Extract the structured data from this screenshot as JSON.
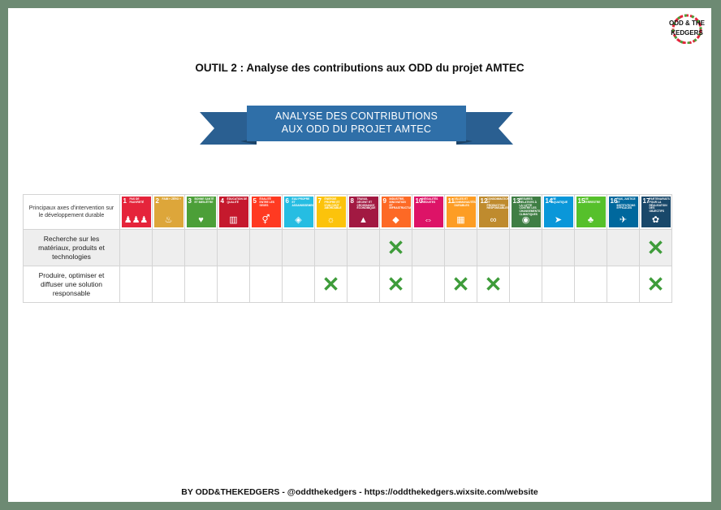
{
  "title": "OUTIL 2 : Analyse des contributions aux ODD du projet AMTEC",
  "banner": {
    "line1": "ANALYSE DES CONTRIBUTIONS",
    "line2": "AUX ODD DU PROJET AMTEC",
    "color": "#2f6fa8"
  },
  "logo": {
    "line1": "ODD & THE",
    "line2": "KEDGERS"
  },
  "table": {
    "header_label": "Principaux axes d'intervention sur le développement durable",
    "sdgs": [
      {
        "n": "1",
        "label": "PAS DE PAUVRETÉ",
        "color": "#e5243b",
        "icon": "people-icon"
      },
      {
        "n": "2",
        "label": "FAIM « ZÉRO »",
        "color": "#dda63a",
        "icon": "bowl-icon"
      },
      {
        "n": "3",
        "label": "BONNE SANTÉ ET BIEN-ÊTRE",
        "color": "#4c9f38",
        "icon": "heartbeat-icon"
      },
      {
        "n": "4",
        "label": "ÉDUCATION DE QUALITÉ",
        "color": "#c5192d",
        "icon": "book-icon"
      },
      {
        "n": "5",
        "label": "ÉGALITÉ ENTRE LES SEXES",
        "color": "#ff3a21",
        "icon": "gender-icon"
      },
      {
        "n": "6",
        "label": "EAU PROPRE ET ASSAINISSEMENT",
        "color": "#26bde2",
        "icon": "water-icon"
      },
      {
        "n": "7",
        "label": "ÉNERGIE PROPRE ET D'UN COÛT ABORDABLE",
        "color": "#fcc30b",
        "icon": "sun-icon"
      },
      {
        "n": "8",
        "label": "TRAVAIL DÉCENT ET CROISSANCE ÉCONOMIQUE",
        "color": "#a21942",
        "icon": "growth-icon"
      },
      {
        "n": "9",
        "label": "INDUSTRIE, INNOVATION ET INFRASTRUCTURE",
        "color": "#fd6925",
        "icon": "cubes-icon"
      },
      {
        "n": "10",
        "label": "INÉGALITÉS RÉDUITES",
        "color": "#dd1367",
        "icon": "equal-icon"
      },
      {
        "n": "11",
        "label": "VILLES ET COMMUNAUTÉS DURABLES",
        "color": "#fd9d24",
        "icon": "city-icon"
      },
      {
        "n": "12",
        "label": "CONSOMMATION ET PRODUCTION RESPONSABLES",
        "color": "#bf8b2e",
        "icon": "infinity-icon"
      },
      {
        "n": "13",
        "label": "MESURES RELATIVES À LA LUTTE CONTRE LES CHANGEMENTS CLIMATIQUES",
        "color": "#3f7e44",
        "icon": "eye-icon"
      },
      {
        "n": "14",
        "label": "VIE AQUATIQUE",
        "color": "#0a97d9",
        "icon": "fish-icon"
      },
      {
        "n": "15",
        "label": "VIE TERRESTRE",
        "color": "#56c02b",
        "icon": "tree-icon"
      },
      {
        "n": "16",
        "label": "PAIX, JUSTICE ET INSTITUTIONS EFFICACES",
        "color": "#00689d",
        "icon": "dove-icon"
      },
      {
        "n": "17",
        "label": "PARTENARIATS POUR LA RÉALISATION DES OBJECTIFS",
        "color": "#19486a",
        "icon": "flower-icon"
      }
    ],
    "rows": [
      {
        "label": "Recherche sur les matériaux, produits et technologies",
        "marks": [
          9,
          17
        ]
      },
      {
        "label": "Produire, optimiser et diffuser une solution responsable",
        "marks": [
          7,
          9,
          11,
          12,
          17
        ]
      }
    ],
    "mark_symbol": "✕",
    "mark_color": "#3e9c3a"
  },
  "footer": "BY ODD&THEKEDGERS  -  @oddthekedgers  -  https://oddthekedgers.wixsite.com/website"
}
